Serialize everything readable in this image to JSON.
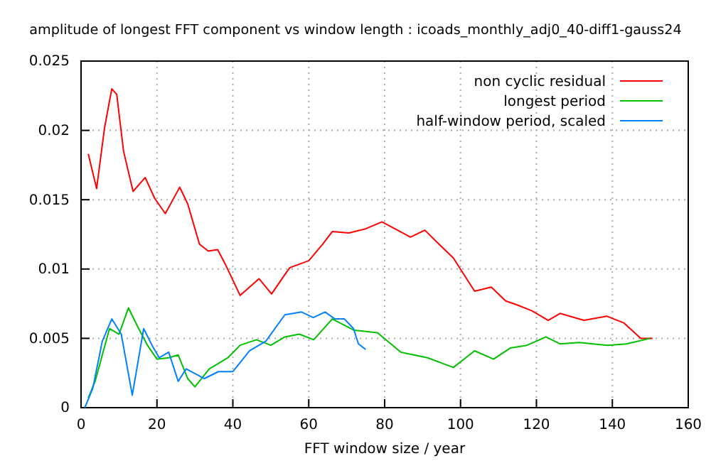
{
  "chart_data": {
    "type": "line",
    "title": "amplitude of longest FFT component vs window length : icoads_monthly_adj0_40-diff1-gauss24",
    "xlabel": "FFT window size / year",
    "xlim": [
      0,
      160
    ],
    "xticks": [
      0,
      20,
      40,
      60,
      80,
      100,
      120,
      140,
      160
    ],
    "ylim": [
      0,
      0.025
    ],
    "yticks": [
      0,
      0.005,
      0.01,
      0.015,
      0.02,
      0.025
    ],
    "grid": true,
    "legend": "top right",
    "line_style": "solid",
    "marker": "none",
    "series": [
      {
        "name": "non cyclic residual",
        "color": "#ff0000",
        "x": [
          1.9,
          4.1,
          6.2,
          8.1,
          9.4,
          11.2,
          13.7,
          16.9,
          19.4,
          22.2,
          26,
          28.1,
          31.2,
          33.5,
          36,
          38.1,
          41.9,
          46.9,
          50.2,
          53.7,
          55,
          60,
          63.7,
          66.2,
          70.6,
          75,
          79.3,
          86.8,
          90.6,
          94.3,
          98.1,
          103.7,
          108.1,
          111.9,
          115,
          118.7,
          123.1,
          126.2,
          132.5,
          138.5,
          143.1,
          147.5,
          150.6
        ],
        "values": [
          0.0183,
          0.0158,
          0.0202,
          0.023,
          0.0226,
          0.0185,
          0.0156,
          0.0166,
          0.0151,
          0.014,
          0.0159,
          0.0147,
          0.0118,
          0.0113,
          0.0114,
          0.0103,
          0.0081,
          0.0093,
          0.0082,
          0.0096,
          0.0101,
          0.0106,
          0.0118,
          0.0127,
          0.0126,
          0.0129,
          0.0134,
          0.0123,
          0.0128,
          0.0118,
          0.0108,
          0.0084,
          0.0087,
          0.0077,
          0.0074,
          0.007,
          0.0063,
          0.0068,
          0.0063,
          0.0066,
          0.0061,
          0.005,
          0.005
        ]
      },
      {
        "name": "longest period",
        "color": "#00c000",
        "x": [
          1.9,
          3.7,
          5.6,
          7.5,
          10,
          12.5,
          15,
          17.5,
          20,
          23.1,
          25.6,
          28.1,
          30,
          33.8,
          38.7,
          41.9,
          46.2,
          50,
          53.7,
          57.5,
          61.3,
          66.2,
          71.8,
          78.1,
          84.3,
          91.3,
          98.1,
          103.7,
          108.7,
          113.1,
          117.5,
          122.5,
          126.2,
          131.2,
          138.7,
          143.7,
          150
        ],
        "values": [
          0.0007,
          0.0019,
          0.0038,
          0.0057,
          0.0053,
          0.0072,
          0.0058,
          0.0045,
          0.0035,
          0.0036,
          0.0038,
          0.0021,
          0.0015,
          0.0028,
          0.0036,
          0.0045,
          0.0049,
          0.0045,
          0.0051,
          0.0053,
          0.0049,
          0.0064,
          0.0056,
          0.0054,
          0.004,
          0.0036,
          0.0029,
          0.0041,
          0.0035,
          0.0043,
          0.0045,
          0.0051,
          0.0046,
          0.0047,
          0.0045,
          0.0046,
          0.005
        ]
      },
      {
        "name": "half-window period, scaled",
        "color": "#0080ff",
        "x": [
          1,
          3.1,
          5.6,
          8.1,
          10.6,
          13.5,
          16.5,
          18.7,
          20.6,
          23.1,
          25.6,
          27.7,
          32.5,
          36.2,
          40,
          44.4,
          48.7,
          53.7,
          58.1,
          61.2,
          64.3,
          66.9,
          69.4,
          71.8,
          73.1,
          75
        ],
        "values": [
          0,
          0.0014,
          0.0048,
          0.0064,
          0.0053,
          0.0009,
          0.0057,
          0.0045,
          0.0036,
          0.004,
          0.0019,
          0.0028,
          0.0021,
          0.0026,
          0.0026,
          0.0041,
          0.0048,
          0.0067,
          0.0069,
          0.0065,
          0.0069,
          0.0064,
          0.0064,
          0.0057,
          0.0046,
          0.0042
        ]
      }
    ]
  }
}
